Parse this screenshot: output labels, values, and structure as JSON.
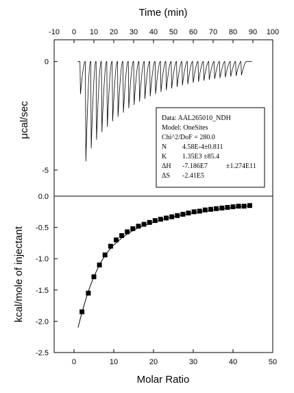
{
  "chart_data": [
    {
      "type": "line",
      "panel": "top",
      "title": "",
      "xlabel": "Time (min)",
      "ylabel": "μcal/sec",
      "xlim": [
        -10,
        100
      ],
      "ylim": [
        -6.2,
        1.0
      ],
      "x_ticks": [
        "-10",
        "0",
        "10",
        "20",
        "30",
        "40",
        "50",
        "60",
        "70",
        "80",
        "90",
        "100"
      ],
      "y_ticks": [
        "0",
        "-5"
      ],
      "grid": false,
      "baseline_y": 0,
      "injection_interval_min": 2.7,
      "injections": [
        {
          "t": 3.0,
          "depth": -1.5
        },
        {
          "t": 5.7,
          "depth": -4.6
        },
        {
          "t": 8.4,
          "depth": -4.0
        },
        {
          "t": 11.1,
          "depth": -3.6
        },
        {
          "t": 13.8,
          "depth": -3.25
        },
        {
          "t": 16.5,
          "depth": -3.0
        },
        {
          "t": 19.2,
          "depth": -2.75
        },
        {
          "t": 21.9,
          "depth": -2.55
        },
        {
          "t": 24.6,
          "depth": -2.35
        },
        {
          "t": 27.3,
          "depth": -2.15
        },
        {
          "t": 30.0,
          "depth": -2.0
        },
        {
          "t": 32.7,
          "depth": -1.85
        },
        {
          "t": 35.4,
          "depth": -1.72
        },
        {
          "t": 38.1,
          "depth": -1.6
        },
        {
          "t": 40.8,
          "depth": -1.5
        },
        {
          "t": 43.5,
          "depth": -1.4
        },
        {
          "t": 46.2,
          "depth": -1.32
        },
        {
          "t": 48.9,
          "depth": -1.24
        },
        {
          "t": 51.6,
          "depth": -1.17
        },
        {
          "t": 54.3,
          "depth": -1.1
        },
        {
          "t": 57.0,
          "depth": -1.04
        },
        {
          "t": 59.7,
          "depth": -0.98
        },
        {
          "t": 62.4,
          "depth": -0.93
        },
        {
          "t": 65.1,
          "depth": -0.88
        },
        {
          "t": 67.8,
          "depth": -0.84
        },
        {
          "t": 70.5,
          "depth": -0.8
        },
        {
          "t": 73.2,
          "depth": -0.76
        },
        {
          "t": 75.9,
          "depth": -0.72
        },
        {
          "t": 78.6,
          "depth": -0.69
        },
        {
          "t": 81.3,
          "depth": -0.66
        },
        {
          "t": 84.0,
          "depth": -0.63
        }
      ],
      "trace_end_t": 89.5,
      "annotation": {
        "lines": [
          {
            "label": "Data: AAL265010_NDH",
            "value": "",
            "extra": ""
          },
          {
            "label": "Model: OneSites",
            "value": "",
            "extra": ""
          },
          {
            "label": "Chi^2/DoF = 280.0",
            "value": "",
            "extra": ""
          },
          {
            "label": "N",
            "value": "4.58E-4±0.811",
            "extra": ""
          },
          {
            "label": "K",
            "value": "1.35E3  ±85.4",
            "extra": ""
          },
          {
            "label": "ΔH",
            "value": "-7.186E7",
            "extra": "±1.274E11"
          },
          {
            "label": "ΔS",
            "value": "-2.41E5",
            "extra": ""
          }
        ]
      }
    },
    {
      "type": "scatter",
      "panel": "bottom",
      "title": "",
      "xlabel": "Molar Ratio",
      "ylabel": "kcal/mole of injectant",
      "xlim": [
        -5,
        50
      ],
      "ylim": [
        -2.5,
        0.0
      ],
      "x_ticks": [
        "0",
        "10",
        "20",
        "30",
        "40",
        "50"
      ],
      "y_ticks": [
        "0.0",
        "-0.5",
        "-1.0",
        "-1.5",
        "-2.0",
        "-2.5"
      ],
      "grid": false,
      "x": [
        2.0,
        3.6,
        5.0,
        6.4,
        7.8,
        9.2,
        10.6,
        12.0,
        13.4,
        14.8,
        16.2,
        17.6,
        19.0,
        20.4,
        21.8,
        23.2,
        24.6,
        26.0,
        27.4,
        28.8,
        30.2,
        31.6,
        33.0,
        34.4,
        35.8,
        37.2,
        38.6,
        40.0,
        41.4,
        42.8,
        44.2
      ],
      "y": [
        -1.85,
        -1.55,
        -1.29,
        -1.1,
        -0.94,
        -0.8,
        -0.7,
        -0.63,
        -0.57,
        -0.52,
        -0.48,
        -0.45,
        -0.42,
        -0.39,
        -0.37,
        -0.35,
        -0.33,
        -0.31,
        -0.29,
        -0.27,
        -0.25,
        -0.24,
        -0.22,
        -0.21,
        -0.2,
        -0.19,
        -0.18,
        -0.17,
        -0.16,
        -0.16,
        -0.15
      ],
      "fit": {
        "x": [
          1.0,
          2.0,
          3.0,
          4.0,
          5.0,
          6.0,
          7.0,
          8.0,
          9.0,
          10.0,
          12.0,
          14.0,
          16.0,
          18.0,
          20.0,
          22.5,
          25.0,
          27.5,
          30.0,
          33.0,
          36.0,
          39.0,
          42.0,
          44.5
        ],
        "y": [
          -2.1,
          -1.86,
          -1.64,
          -1.45,
          -1.29,
          -1.15,
          -1.03,
          -0.93,
          -0.85,
          -0.78,
          -0.67,
          -0.58,
          -0.51,
          -0.46,
          -0.42,
          -0.37,
          -0.33,
          -0.3,
          -0.27,
          -0.24,
          -0.21,
          -0.19,
          -0.17,
          -0.15
        ]
      }
    }
  ]
}
